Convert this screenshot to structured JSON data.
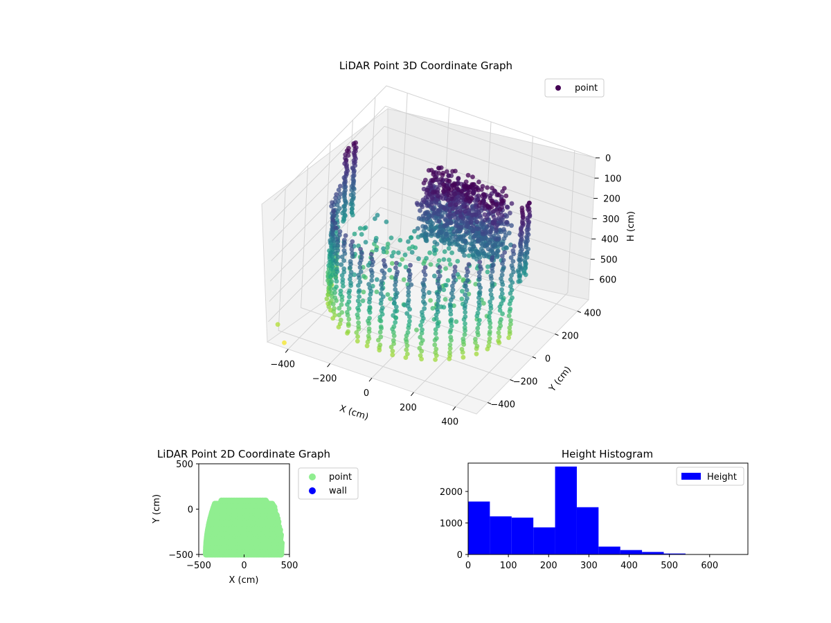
{
  "chart_data": [
    {
      "type": "scatter",
      "projection": "3d",
      "title": "LiDAR Point 3D Coordinate Graph",
      "xlabel": "X (cm)",
      "ylabel": "Y (cm)",
      "zlabel": "H (cm)",
      "xlim": [
        -500,
        500
      ],
      "ylim": [
        -500,
        500
      ],
      "zlim": [
        700,
        0
      ],
      "x_ticks": [
        -400,
        -200,
        0,
        200,
        400
      ],
      "y_ticks": [
        -400,
        -200,
        0,
        200,
        400
      ],
      "z_ticks": [
        0,
        100,
        200,
        300,
        400,
        500,
        600
      ],
      "colormap": "viridis",
      "legend": {
        "entries": [
          "point"
        ],
        "placement": "top-right"
      },
      "legend_marker_color": "#440154",
      "grid": true,
      "series": [
        {
          "name": "point",
          "description_of_shape": "near-circular ring of points around the sensor",
          "radius_cm": 420,
          "y_range": [
            -500,
            110
          ],
          "h_range": [
            0,
            690
          ],
          "far_wall_h_range": [
            0,
            280
          ],
          "near_wall_h_range": [
            170,
            520
          ],
          "outlier_points": [
            {
              "x": -470,
              "y": -470,
              "h": 620
            },
            {
              "x": -430,
              "y": -480,
              "h": 690
            }
          ]
        }
      ]
    },
    {
      "type": "scatter",
      "title": "LiDAR Point 2D Coordinate Graph",
      "xlabel": "X (cm)",
      "ylabel": "Y (cm)",
      "xlim": [
        -500,
        500
      ],
      "ylim": [
        -500,
        500
      ],
      "x_ticks": [
        -500,
        0,
        500
      ],
      "y_ticks": [
        -500,
        0,
        500
      ],
      "legend": {
        "entries": [
          "point",
          "wall"
        ],
        "placement": "outside-right"
      },
      "series": [
        {
          "name": "point",
          "color": "#90ee90",
          "region": {
            "x_range": [
              -420,
              420
            ],
            "y_range": [
              -500,
              110
            ]
          }
        },
        {
          "name": "wall",
          "color": "#0000ff",
          "points": []
        }
      ]
    },
    {
      "type": "bar",
      "subtype": "histogram",
      "title": "Height Histogram",
      "xlabel": "",
      "ylabel": "",
      "xlim": [
        0,
        695
      ],
      "ylim": [
        0,
        2900
      ],
      "x_ticks": [
        0,
        100,
        200,
        300,
        400,
        500,
        600
      ],
      "y_ticks": [
        0,
        1000,
        2000
      ],
      "legend": {
        "entries": [
          "Height"
        ],
        "placement": "top-right"
      },
      "color": "#0000ff",
      "bin_edges": [
        0,
        54,
        108,
        162,
        216,
        270,
        324,
        378,
        432,
        486,
        540,
        594,
        648,
        695
      ],
      "values": [
        1680,
        1210,
        1170,
        860,
        2790,
        1500,
        250,
        140,
        80,
        30,
        10,
        5,
        2
      ],
      "series": [
        {
          "name": "Height",
          "values": [
            1680,
            1210,
            1170,
            860,
            2790,
            1500,
            250,
            140,
            80,
            30,
            10,
            5,
            2
          ]
        }
      ]
    }
  ]
}
